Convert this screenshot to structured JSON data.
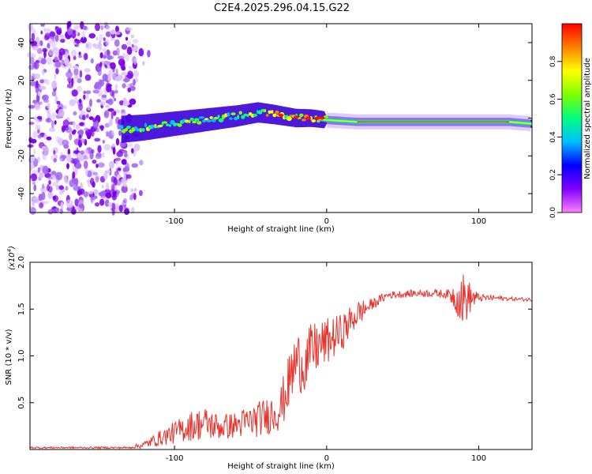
{
  "title": "C2E4.2025.296.04.15.G22",
  "chart_data": [
    {
      "type": "heatmap",
      "xlabel": "Height of straight line (km)",
      "ylabel": "Frequency (Hz)",
      "xlim": [
        -195,
        135
      ],
      "ylim": [
        -50,
        50
      ],
      "xticks": [
        -100,
        0,
        100
      ],
      "yticks": [
        -40,
        -20,
        0,
        20,
        40
      ],
      "colorbar": {
        "label": "Normalized spectral amplitude",
        "range": [
          0,
          1
        ],
        "ticks": [
          "0.0",
          "0.2",
          "0.4",
          "0.6",
          "0.8"
        ],
        "colors": [
          "#ff80ff",
          "#8000ff",
          "#0000ff",
          "#00c0ff",
          "#00ff80",
          "#80ff00",
          "#ffff00",
          "#ff8000",
          "#ff0000"
        ]
      },
      "ridge": {
        "description": "dominant frequency track",
        "points": [
          [
            -135,
            -6
          ],
          [
            -120,
            -5
          ],
          [
            -100,
            -3
          ],
          [
            -80,
            -1
          ],
          [
            -60,
            1
          ],
          [
            -45,
            3
          ],
          [
            -35,
            2
          ],
          [
            -20,
            0
          ],
          [
            -10,
            0
          ],
          [
            0,
            -1
          ],
          [
            20,
            -2
          ],
          [
            60,
            -2
          ],
          [
            100,
            -2
          ],
          [
            120,
            -2
          ],
          [
            135,
            -3
          ]
        ]
      },
      "noise_region_x": [
        -195,
        -125
      ]
    },
    {
      "type": "line",
      "xlabel": "Height of straight line (km)",
      "ylabel": "SNR (10 * v/v)",
      "y_multiplier": "(x10^4)",
      "multiplier_base": "(x10",
      "multiplier_exp": "4",
      "xlim": [
        -195,
        135
      ],
      "ylim": [
        0,
        2.0
      ],
      "xticks": [
        -100,
        0,
        100
      ],
      "yticks": [
        0.5,
        1.0,
        1.5,
        2.0
      ],
      "ytick_labels": [
        "0.5",
        "1.0",
        "1.5",
        "2.0"
      ],
      "color": "#e8322b",
      "series_envelope": {
        "x": [
          -195,
          -130,
          -120,
          -110,
          -100,
          -90,
          -80,
          -70,
          -60,
          -50,
          -40,
          -30,
          -25,
          -20,
          -15,
          -10,
          0,
          10,
          20,
          30,
          40,
          50,
          60,
          70,
          80,
          85,
          90,
          95,
          100,
          110,
          120,
          135
        ],
        "mean": [
          0.02,
          0.02,
          0.05,
          0.12,
          0.18,
          0.25,
          0.28,
          0.24,
          0.26,
          0.3,
          0.35,
          0.45,
          0.7,
          0.95,
          0.9,
          1.05,
          1.15,
          1.25,
          1.45,
          1.55,
          1.65,
          1.66,
          1.67,
          1.67,
          1.66,
          1.63,
          1.6,
          1.62,
          1.62,
          1.62,
          1.61,
          1.6
        ],
        "amplitude": [
          0.01,
          0.01,
          0.04,
          0.08,
          0.12,
          0.16,
          0.18,
          0.14,
          0.14,
          0.18,
          0.2,
          0.25,
          0.3,
          0.35,
          0.3,
          0.3,
          0.25,
          0.2,
          0.15,
          0.06,
          0.04,
          0.04,
          0.04,
          0.04,
          0.05,
          0.18,
          0.3,
          0.15,
          0.04,
          0.03,
          0.02,
          0.02
        ]
      }
    }
  ]
}
